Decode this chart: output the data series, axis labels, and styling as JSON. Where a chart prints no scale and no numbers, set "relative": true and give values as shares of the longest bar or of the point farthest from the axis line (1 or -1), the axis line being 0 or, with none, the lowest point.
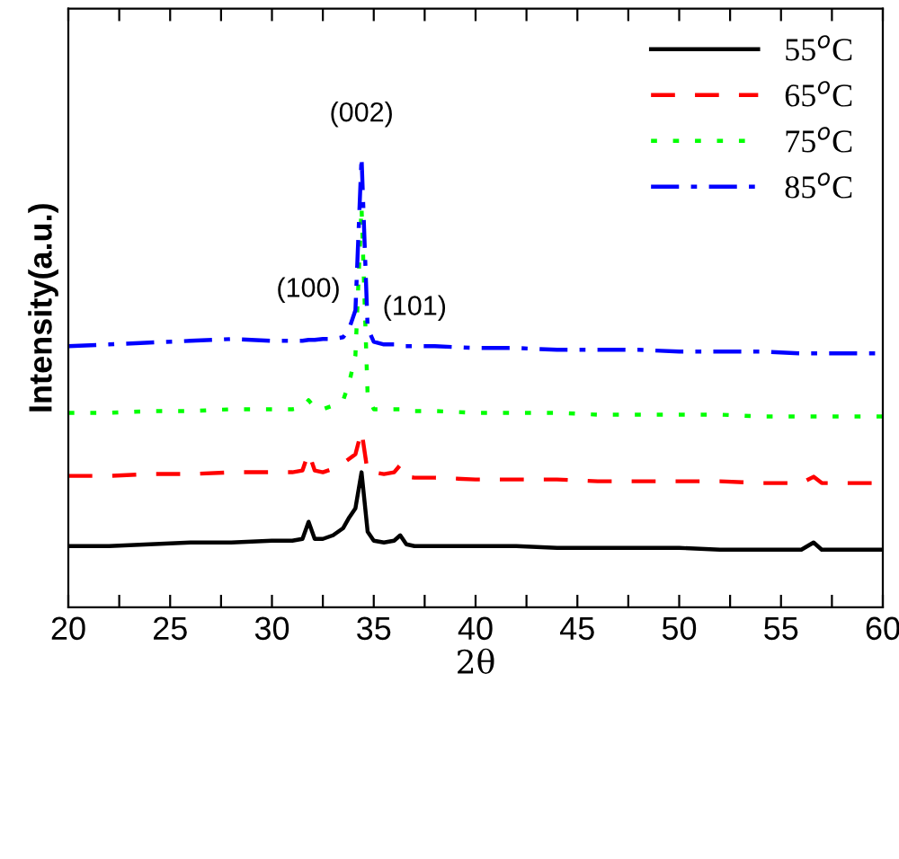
{
  "chart_data": {
    "type": "line",
    "relative": true,
    "xlabel": "2θ",
    "ylabel": "Intensity(a.u.)",
    "x": [
      20,
      22,
      24,
      26,
      28,
      30,
      31,
      31.5,
      31.8,
      32.1,
      32.5,
      33,
      33.5,
      33.8,
      34.1,
      34.4,
      34.7,
      35,
      35.5,
      36,
      36.3,
      36.6,
      37,
      38,
      40,
      42,
      44,
      46,
      48,
      50,
      52,
      54,
      56,
      56.6,
      57,
      58,
      60
    ],
    "xlim": [
      20,
      60
    ],
    "xticks": [
      20,
      {
        "value": 22.5,
        "label": null
      },
      25,
      {
        "value": 27.5,
        "label": null
      },
      30,
      {
        "value": 32.5,
        "label": null
      },
      35,
      {
        "value": 37.5,
        "label": null
      },
      40,
      {
        "value": 42.5,
        "label": null
      },
      45,
      {
        "value": 47.5,
        "label": null
      },
      50,
      {
        "value": 52.5,
        "label": null
      },
      55,
      {
        "value": 57.5,
        "label": null
      },
      60
    ],
    "tick_labels": "x",
    "legend": "top right",
    "grid": false,
    "series": [
      {
        "name": "55$^{o}$C",
        "color": "#000000",
        "line_style": "solid",
        "values": [
          0.136,
          0.136,
          0.14,
          0.144,
          0.144,
          0.148,
          0.148,
          0.152,
          0.19,
          0.152,
          0.152,
          0.16,
          0.176,
          0.2,
          0.22,
          0.3,
          0.168,
          0.148,
          0.144,
          0.148,
          0.16,
          0.14,
          0.136,
          0.136,
          0.136,
          0.136,
          0.132,
          0.132,
          0.132,
          0.132,
          0.128,
          0.128,
          0.128,
          0.144,
          0.128,
          0.128,
          0.128
        ]
      },
      {
        "name": "65$^{o}$C",
        "color": "#ff0000",
        "line_style": "dashed",
        "values": [
          0.292,
          0.292,
          0.296,
          0.296,
          0.3,
          0.3,
          0.3,
          0.304,
          0.344,
          0.304,
          0.3,
          0.308,
          0.32,
          0.33,
          0.34,
          0.392,
          0.3,
          0.3,
          0.296,
          0.3,
          0.316,
          0.29,
          0.288,
          0.288,
          0.284,
          0.284,
          0.284,
          0.28,
          0.28,
          0.28,
          0.28,
          0.276,
          0.276,
          0.29,
          0.276,
          0.276,
          0.276
        ]
      },
      {
        "name": "75$^{o}$C",
        "color": "#00ff00",
        "line_style": "dotted",
        "values": [
          0.432,
          0.432,
          0.436,
          0.436,
          0.44,
          0.44,
          0.44,
          0.444,
          0.46,
          0.444,
          0.44,
          0.448,
          0.46,
          0.5,
          0.56,
          0.89,
          0.47,
          0.44,
          0.44,
          0.44,
          0.44,
          0.436,
          0.436,
          0.436,
          0.432,
          0.432,
          0.432,
          0.428,
          0.428,
          0.428,
          0.428,
          0.424,
          0.424,
          0.424,
          0.424,
          0.424,
          0.424
        ]
      },
      {
        "name": "85$^{o}$C",
        "color": "#0000ff",
        "line_style": "dashdot",
        "values": [
          0.58,
          0.584,
          0.588,
          0.592,
          0.596,
          0.592,
          0.592,
          0.592,
          0.594,
          0.594,
          0.596,
          0.596,
          0.6,
          0.62,
          0.66,
          1.0,
          0.62,
          0.59,
          0.584,
          0.584,
          0.58,
          0.58,
          0.58,
          0.58,
          0.576,
          0.576,
          0.572,
          0.572,
          0.572,
          0.568,
          0.568,
          0.568,
          0.564,
          0.564,
          0.564,
          0.564,
          0.564
        ]
      }
    ],
    "annotations": [
      {
        "text": "(002)",
        "x": 34.4,
        "y": 1.0
      },
      {
        "text": "(100)",
        "x": 34.1,
        "y": 0.66
      },
      {
        "text": "(101)",
        "x": 34.7,
        "y": 0.62
      }
    ]
  }
}
